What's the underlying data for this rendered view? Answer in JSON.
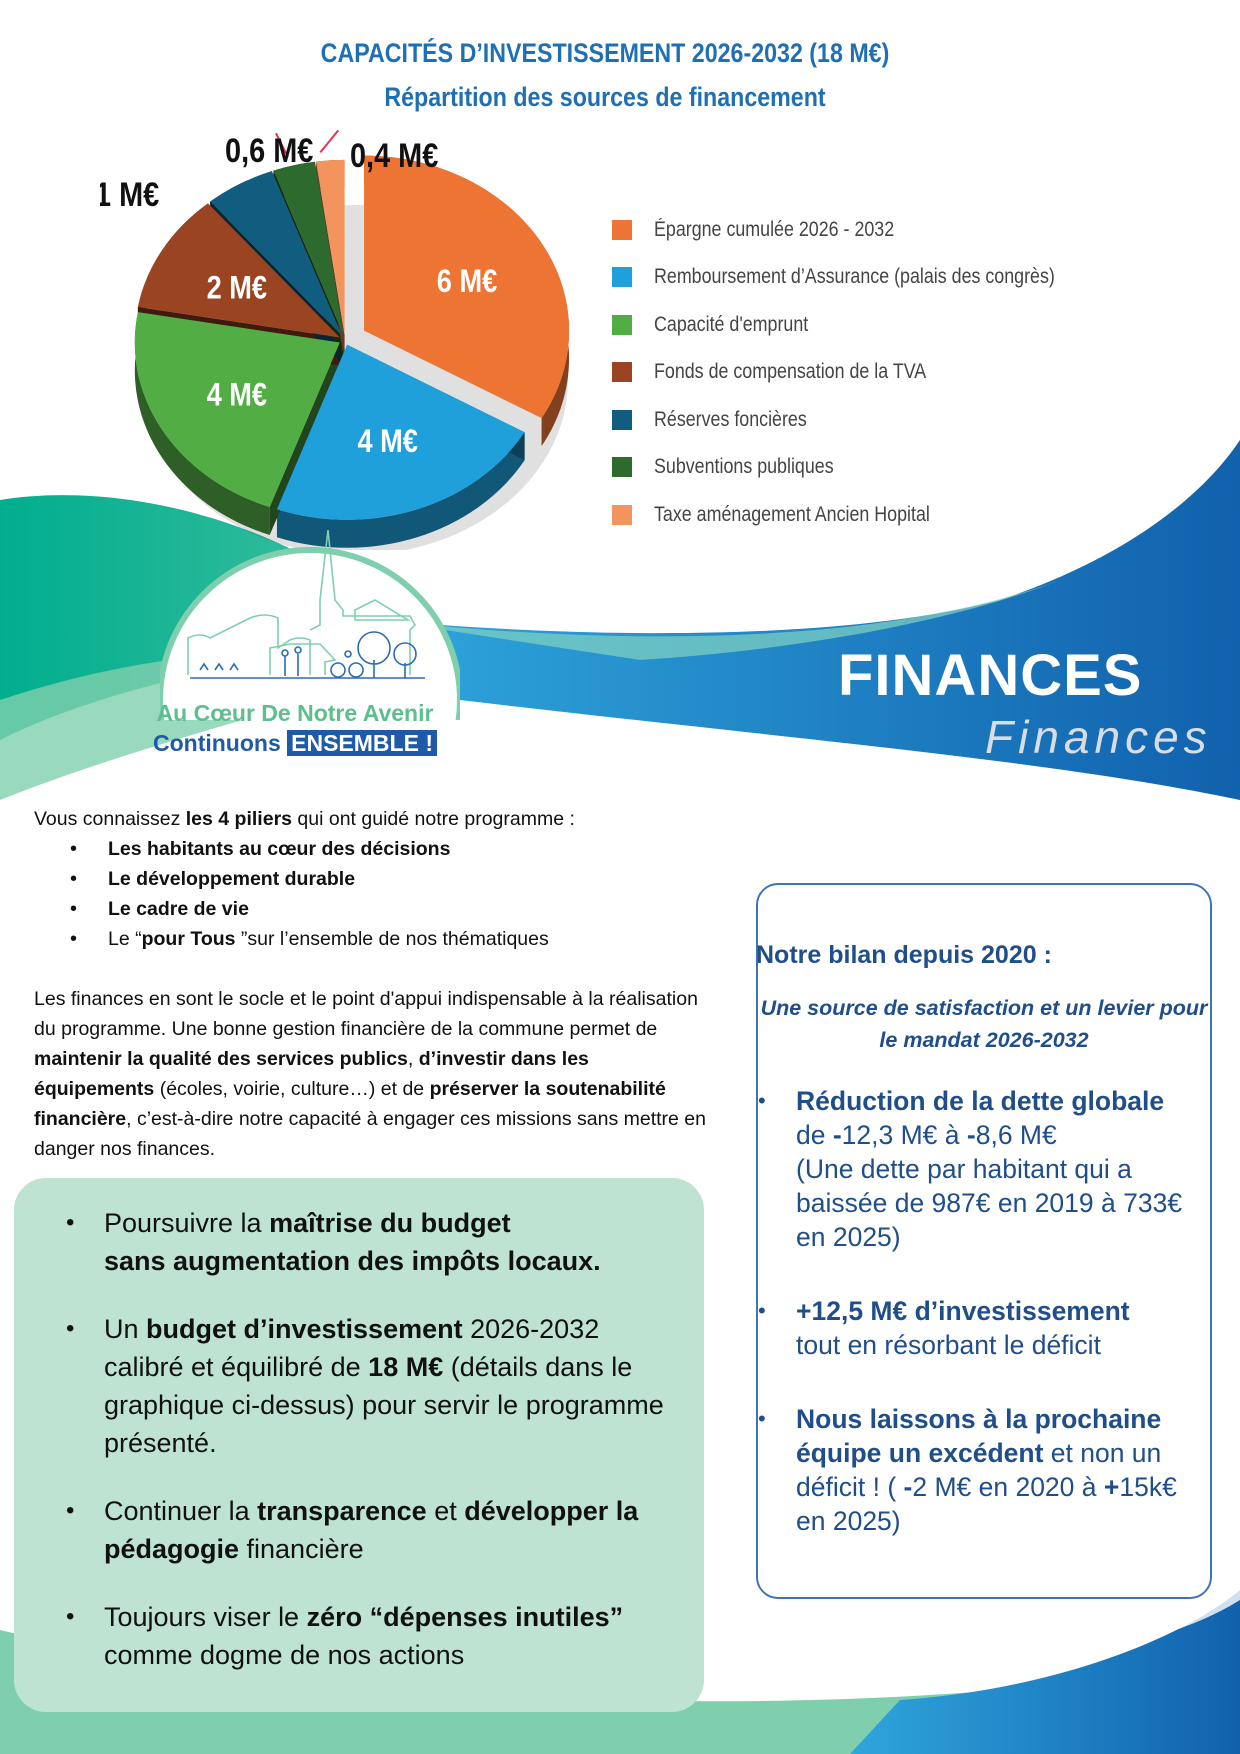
{
  "header": {
    "title": "CAPACITÉS D’INVESTISSEMENT 2026-2032 (18 M€)",
    "subtitle": "Répartition des sources de financement"
  },
  "chart_data": {
    "type": "pie",
    "title": "CAPACITÉS D’INVESTISSEMENT 2026-2032 (18 M€)",
    "subtitle": "Répartition des sources de financement",
    "unit": "M€",
    "legend_position": "right",
    "slices": [
      {
        "name": "Épargne cumulée 2026 - 2032",
        "value": 6,
        "label": "6 M€",
        "color": "#ee7434"
      },
      {
        "name": "Remboursement d’Assurance (palais des congrès)",
        "value": 4,
        "label": "4 M€",
        "color": "#1fa0db"
      },
      {
        "name": "Capacité d'emprunt",
        "value": 4,
        "label": "4 M€",
        "color": "#52ad45"
      },
      {
        "name": "Fonds de compensation de la TVA",
        "value": 2,
        "label": "2 M€",
        "color": "#9b4422"
      },
      {
        "name": "Réserves foncières",
        "value": 1,
        "label": "1 M€",
        "color": "#115d80"
      },
      {
        "name": "Subventions publiques",
        "value": 0.6,
        "label": "0,6 M€",
        "color": "#2d6a2e"
      },
      {
        "name": "Taxe aménagement Ancien Hopital",
        "value": 0.4,
        "label": "0,4 M€",
        "color": "#f3935e"
      }
    ]
  },
  "banner": {
    "title": "FINANCES",
    "subtitle": "Finances"
  },
  "logo": {
    "line1": "Au Cœur De Notre Avenir",
    "line2a": "Continuons ",
    "line2b": "ENSEMBLE !"
  },
  "intro": {
    "lead": [
      [
        "Vous connaissez ",
        0
      ],
      [
        "les 4 piliers",
        1
      ],
      [
        " qui ont guidé notre programme :",
        0
      ]
    ],
    "pillars": [
      [
        [
          "Les habitants au cœur des décisions",
          1
        ]
      ],
      [
        [
          "Le développement durable",
          1
        ]
      ],
      [
        [
          "Le cadre de vie",
          1
        ]
      ],
      [
        [
          "Le “",
          0
        ],
        [
          "pour Tous ",
          1
        ],
        [
          "”sur l’ensemble de nos thématiques",
          0
        ]
      ]
    ],
    "para": [
      [
        "Les finances en sont le socle et le point d'appui indispensable à la réalisation du programme. Une bonne gestion financière de la commune permet de ",
        0
      ],
      [
        "maintenir la qualité des services publics",
        1
      ],
      [
        ", ",
        0
      ],
      [
        "d’investir dans les équipements",
        1
      ],
      [
        " (écoles, voirie, culture…) et de ",
        0
      ],
      [
        "préserver la soutenabilité financière",
        1
      ],
      [
        ", c’est-à-dire notre capacité à engager ces missions sans mettre en danger nos finances.",
        0
      ]
    ]
  },
  "commitments": [
    [
      [
        "Poursuivre la ",
        0
      ],
      [
        "maîtrise du budget\nsans augmentation des impôts locaux.",
        1
      ]
    ],
    [
      [
        "Un ",
        0
      ],
      [
        "budget d’investissement",
        1
      ],
      [
        " 2026-2032 calibré et équilibré de ",
        0
      ],
      [
        "18 M€",
        1
      ],
      [
        " (détails dans le graphique ci-dessus) pour servir le programme présenté.",
        0
      ]
    ],
    [
      [
        "Continuer la ",
        0
      ],
      [
        "transparence",
        1
      ],
      [
        " et ",
        0
      ],
      [
        "développer la pédagogie",
        1
      ],
      [
        " financière",
        0
      ]
    ],
    [
      [
        "Toujours viser le ",
        0
      ],
      [
        "zéro “dépenses inutiles”",
        1
      ],
      [
        " comme dogme de nos actions",
        0
      ]
    ]
  ],
  "bilan": {
    "title": "Notre bilan depuis 2020 :",
    "subtitle": "Une source de satisfaction et un levier pour le mandat 2026-2032",
    "items": [
      [
        [
          "Réduction de la dette globale",
          1
        ],
        [
          "\nde ",
          0
        ],
        [
          "-",
          1
        ],
        [
          "12,3 M€ à ",
          0
        ],
        [
          "-",
          1
        ],
        [
          "8,6 M€\n(Une dette par habitant qui a baissée de 987€ en 2019 à 733€ en 2025)",
          0
        ]
      ],
      [
        [
          "+12,5 M€ d’investissement",
          1
        ],
        [
          "\ntout en résorbant le déficit",
          0
        ]
      ],
      [
        [
          "Nous laissons à la prochaine équipe un excédent",
          1
        ],
        [
          " et non un déficit ! ( ",
          0
        ],
        [
          "-",
          1
        ],
        [
          "2 M€ en 2020 à ",
          0
        ],
        [
          "+",
          1
        ],
        [
          "15k€ en 2025)",
          0
        ]
      ]
    ]
  },
  "colors": {
    "title_blue": "#1f6fb5",
    "navy": "#1f4e8a",
    "teal": "#00b08f",
    "mint": "#7fcfae",
    "blue": "#1b7cc8",
    "box_green": "#bee3d3"
  }
}
